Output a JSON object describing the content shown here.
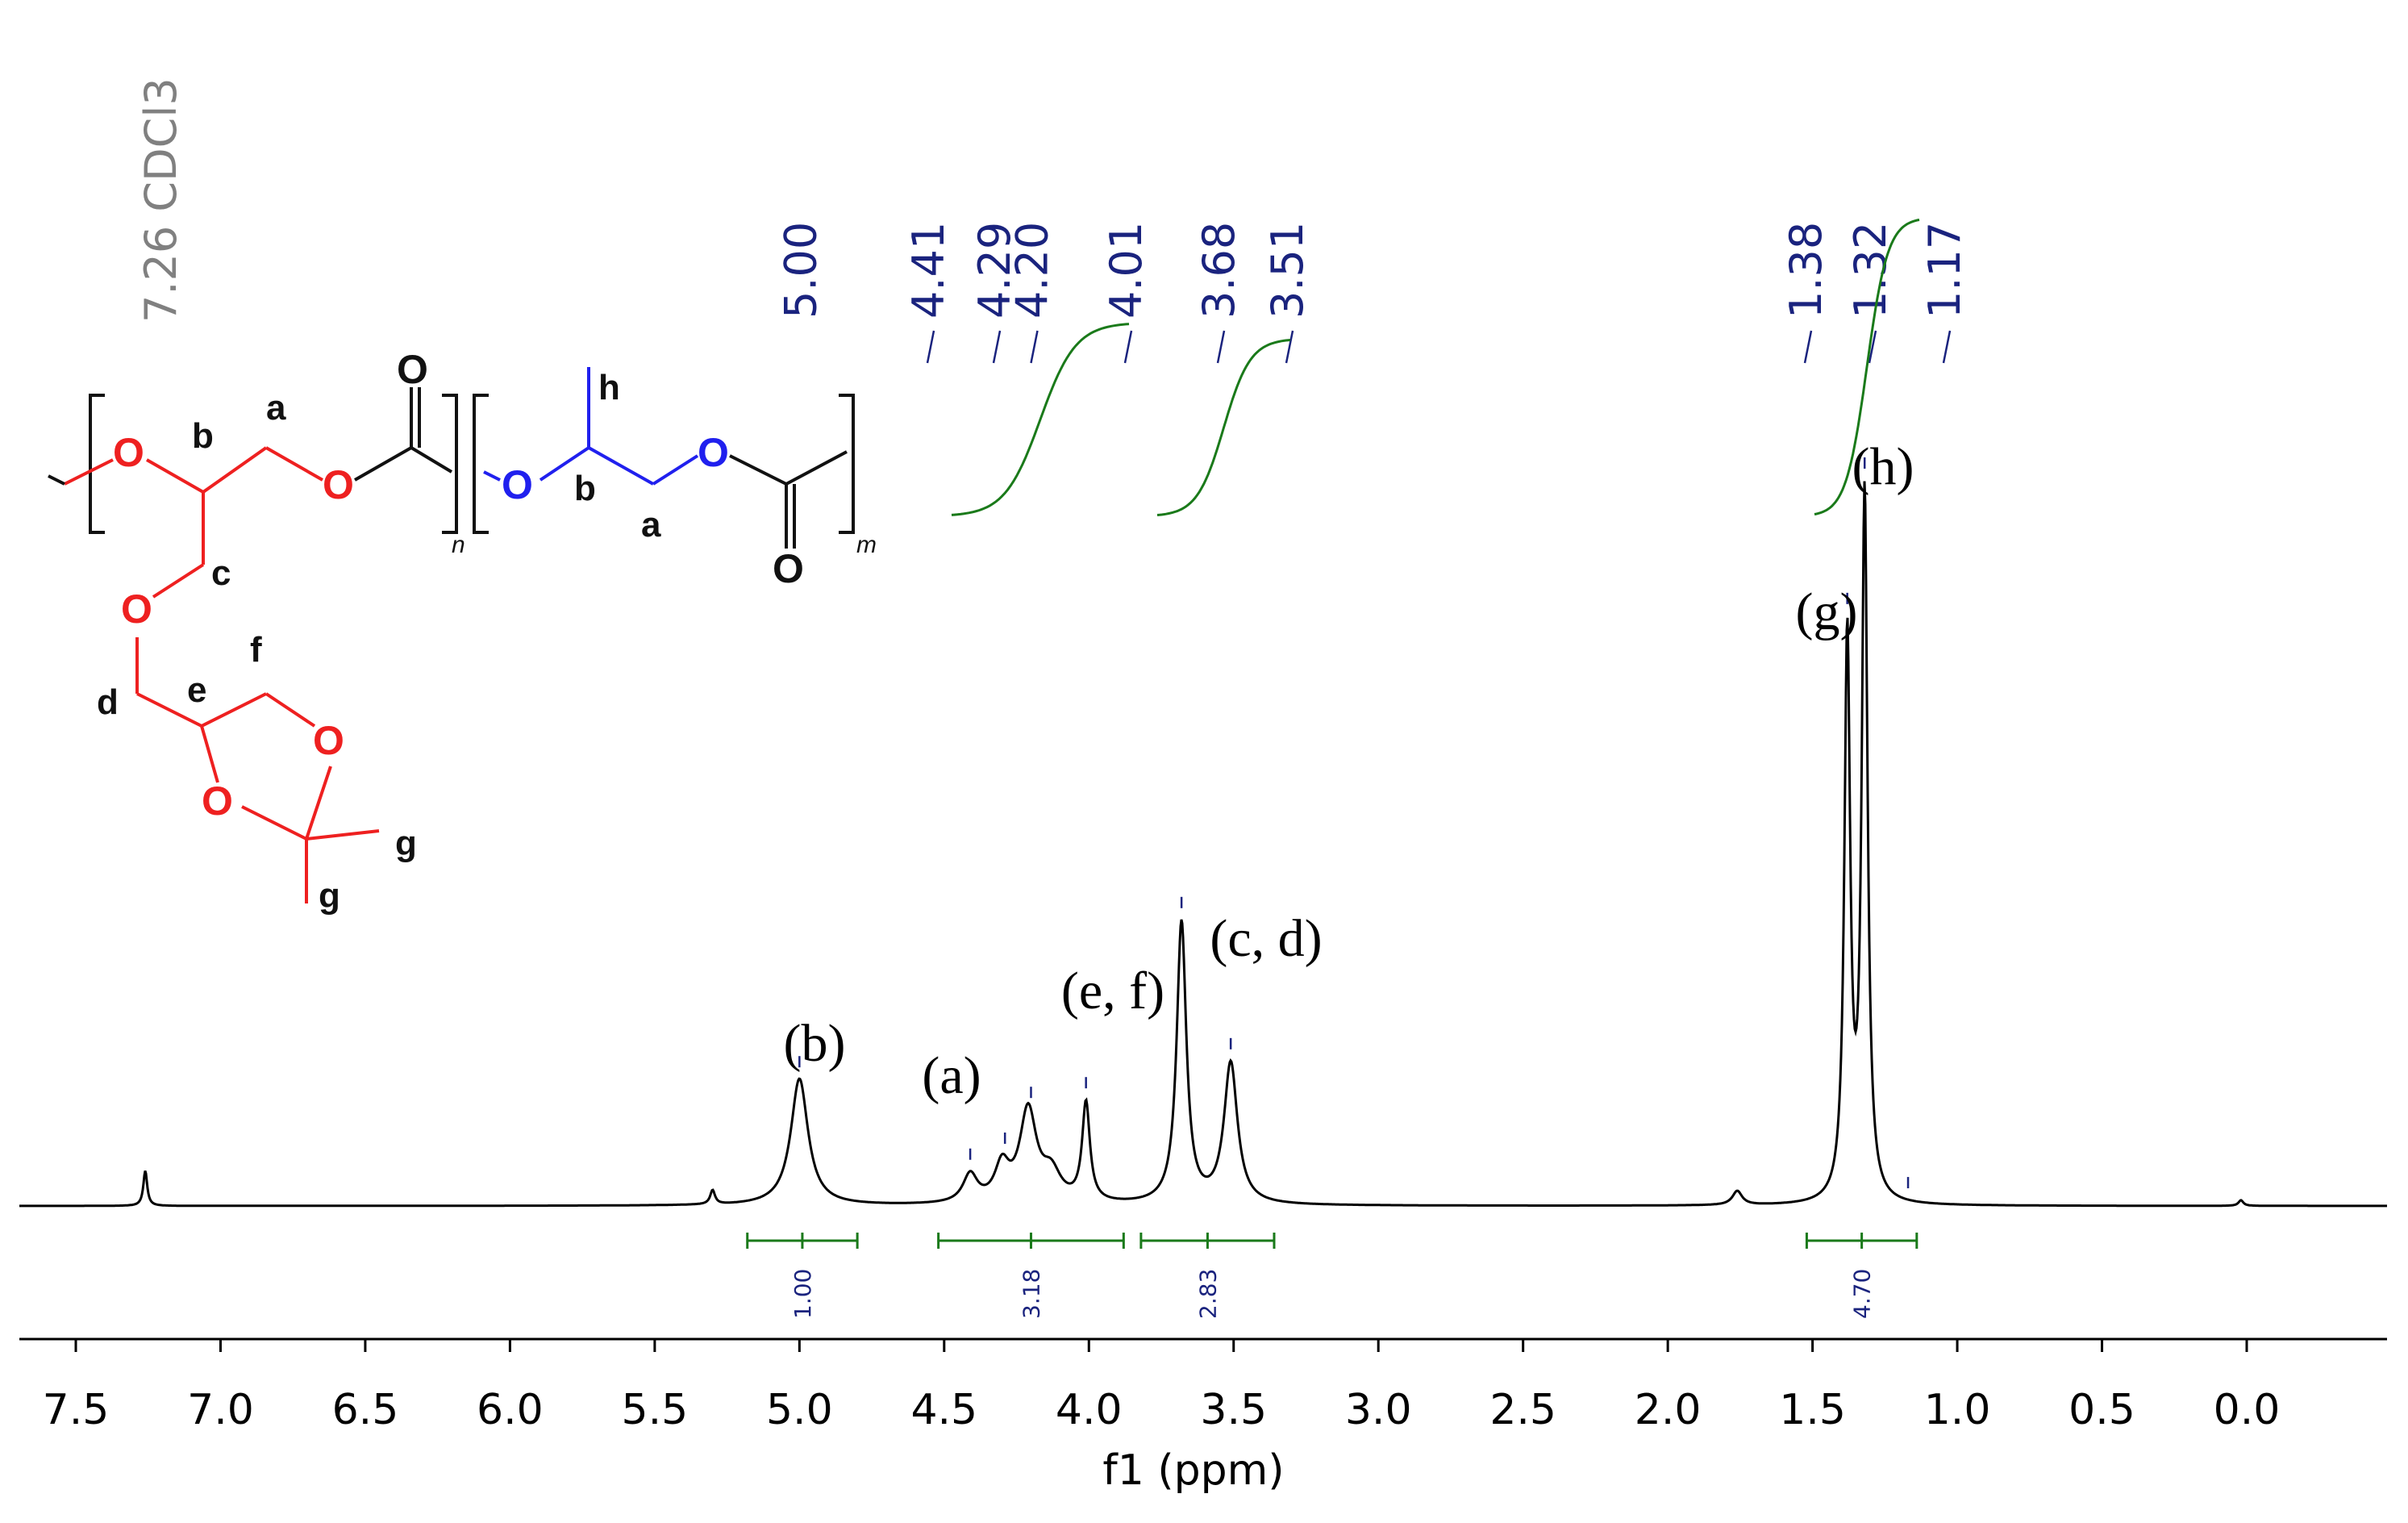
{
  "chart_data": {
    "type": "line",
    "xlabel": "f1 (ppm)",
    "ylabel": "",
    "xlim": [
      7.8,
      -0.5
    ],
    "x_reversed": true,
    "x_ticks": [
      "7.5",
      "7.0",
      "6.5",
      "6.0",
      "5.5",
      "5.0",
      "4.5",
      "4.0",
      "3.5",
      "3.0",
      "2.5",
      "2.0",
      "1.5",
      "1.0",
      "0.5",
      "0.0"
    ],
    "grid": false,
    "solvent_reference": {
      "ppm": 7.26,
      "label": "7.26 CDCl3"
    },
    "peak_picks": [
      {
        "ppm": 5.0,
        "label": "5.00"
      },
      {
        "ppm": 4.41,
        "label": "4.41"
      },
      {
        "ppm": 4.29,
        "label": "4.29"
      },
      {
        "ppm": 4.2,
        "label": "4.20"
      },
      {
        "ppm": 4.01,
        "label": "4.01"
      },
      {
        "ppm": 3.68,
        "label": "3.68"
      },
      {
        "ppm": 3.51,
        "label": "3.51"
      },
      {
        "ppm": 1.38,
        "label": "1.38"
      },
      {
        "ppm": 1.32,
        "label": "1.32"
      },
      {
        "ppm": 1.17,
        "label": "1.17"
      }
    ],
    "spectrum_peaks": [
      {
        "ppm": 7.26,
        "height": 0.05,
        "width": 0.008
      },
      {
        "ppm": 5.3,
        "height": 0.02,
        "width": 0.01
      },
      {
        "ppm": 5.0,
        "height": 0.18,
        "width": 0.036
      },
      {
        "ppm": 4.41,
        "height": 0.04,
        "width": 0.03
      },
      {
        "ppm": 4.3,
        "height": 0.05,
        "width": 0.03
      },
      {
        "ppm": 4.21,
        "height": 0.13,
        "width": 0.035
      },
      {
        "ppm": 4.13,
        "height": 0.04,
        "width": 0.04
      },
      {
        "ppm": 4.01,
        "height": 0.14,
        "width": 0.016
      },
      {
        "ppm": 3.68,
        "height": 0.4,
        "width": 0.02
      },
      {
        "ppm": 3.51,
        "height": 0.2,
        "width": 0.028
      },
      {
        "ppm": 1.76,
        "height": 0.02,
        "width": 0.02
      },
      {
        "ppm": 1.38,
        "height": 0.8,
        "width": 0.012
      },
      {
        "ppm": 1.32,
        "height": 1.0,
        "width": 0.012
      },
      {
        "ppm": 0.02,
        "height": 0.008,
        "width": 0.01
      }
    ],
    "integrals": [
      {
        "from": 5.18,
        "to": 4.8,
        "value": "1.00"
      },
      {
        "from": 4.52,
        "to": 3.88,
        "value": "3.18"
      },
      {
        "from": 3.82,
        "to": 3.36,
        "value": "2.83"
      },
      {
        "from": 1.52,
        "to": 1.14,
        "value": "4.70"
      }
    ],
    "peak_assignments": [
      {
        "ppm": 5.0,
        "label": "(b)"
      },
      {
        "ppm": 4.41,
        "label": "(a)"
      },
      {
        "ppm": 4.1,
        "label": "(e, f)"
      },
      {
        "ppm": 3.55,
        "label": "(c, d)"
      },
      {
        "ppm": 1.42,
        "label": "(g)"
      },
      {
        "ppm": 1.28,
        "label": "(h)"
      }
    ]
  },
  "structure": {
    "atoms": {
      "O": "O",
      "n": "n",
      "m": "m"
    },
    "labels": [
      "a",
      "b",
      "c",
      "d",
      "e",
      "f",
      "g",
      "h"
    ],
    "colors": {
      "block1": "#ee2020",
      "block2": "#2020ee",
      "neutral": "#111111",
      "integral": "#1a7a1a",
      "pick": "#1a237e"
    }
  }
}
